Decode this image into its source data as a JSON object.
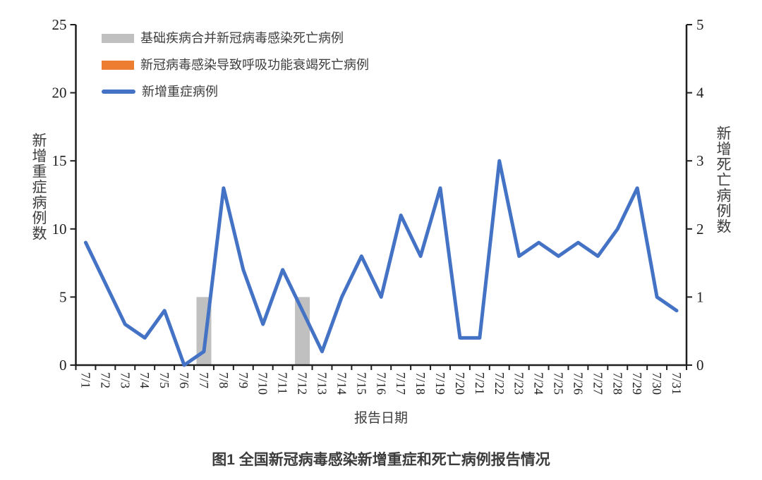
{
  "caption": "图1 全国新冠病毒感染新增重症和死亡病例报告情况",
  "colors": {
    "severe_line": "#4472c4",
    "underlying_disease_bar": "#c0c0c0",
    "respiratory_failure_bar": "#ed7d31",
    "axis": "#1f1f1f",
    "background": "#ffffff"
  },
  "chart_data": {
    "type": "combo",
    "grid": "off",
    "legend_position": "top-left-inside",
    "x_axis": {
      "title": "报告日期",
      "categories": [
        "7/1",
        "7/2",
        "7/3",
        "7/4",
        "7/5",
        "7/6",
        "7/7",
        "7/8",
        "7/9",
        "7/10",
        "7/11",
        "7/12",
        "7/13",
        "7/14",
        "7/15",
        "7/16",
        "7/17",
        "7/18",
        "7/19",
        "7/20",
        "7/21",
        "7/22",
        "7/23",
        "7/24",
        "7/25",
        "7/26",
        "7/27",
        "7/28",
        "7/29",
        "7/30",
        "7/31"
      ]
    },
    "left_axis": {
      "title": "新增重症病例数",
      "min": 0,
      "max": 25,
      "step": 5,
      "ticks": [
        0,
        5,
        10,
        15,
        20,
        25
      ]
    },
    "right_axis": {
      "title": "新增死亡病例数",
      "min": 0,
      "max": 5,
      "step": 1,
      "ticks": [
        0,
        1,
        2,
        3,
        4,
        5
      ]
    },
    "series": [
      {
        "name": "基础疾病合并新冠病毒感染死亡病例",
        "type": "bar",
        "axis": "right",
        "color": "#c0c0c0",
        "values": [
          0,
          0,
          0,
          0,
          0,
          0,
          1,
          0,
          0,
          0,
          0,
          1,
          0,
          0,
          0,
          0,
          0,
          0,
          0,
          0,
          0,
          0,
          0,
          0,
          0,
          0,
          0,
          0,
          0,
          0,
          0
        ]
      },
      {
        "name": "新冠病毒感染导致呼吸功能衰竭死亡病例",
        "type": "bar",
        "axis": "right",
        "color": "#ed7d31",
        "values": [
          0,
          0,
          0,
          0,
          0,
          0,
          0,
          0,
          0,
          0,
          0,
          0,
          0,
          0,
          0,
          0,
          0,
          0,
          0,
          0,
          0,
          0,
          0,
          0,
          0,
          0,
          0,
          0,
          0,
          0,
          0
        ]
      },
      {
        "name": "新增重症病例",
        "type": "line",
        "axis": "left",
        "color": "#4472c4",
        "stroke_width": 5,
        "values": [
          9,
          6,
          3,
          2,
          4,
          0,
          1,
          13,
          7,
          3,
          7,
          4,
          1,
          5,
          8,
          5,
          11,
          8,
          13,
          2,
          2,
          15,
          8,
          9,
          8,
          9,
          8,
          10,
          13,
          5,
          4
        ]
      }
    ]
  }
}
